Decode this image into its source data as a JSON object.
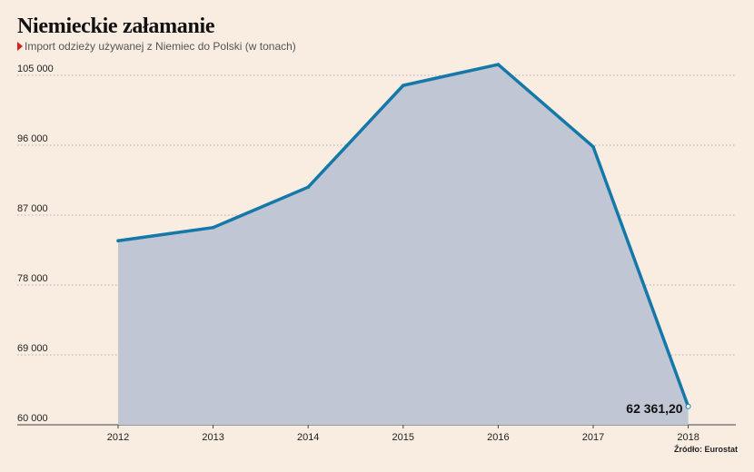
{
  "header": {
    "title": "Niemieckie załamanie",
    "subtitle": "Import odzieży używanej z Niemiec do Polski (w tonach)"
  },
  "footer": {
    "source": "Źródło: Eurostat"
  },
  "chart_data": {
    "type": "area",
    "title": "Niemieckie załamanie",
    "subtitle": "Import odzieży używanej z Niemiec do Polski (w tonach)",
    "xlabel": "",
    "ylabel": "",
    "x": [
      "2012",
      "2013",
      "2014",
      "2015",
      "2016",
      "2017",
      "2018"
    ],
    "series": [
      {
        "values": [
          83700,
          85400,
          90600,
          103700,
          106400,
          95800,
          62361.2
        ]
      }
    ],
    "ylim": [
      60000,
      105000
    ],
    "yticks": [
      60000,
      69000,
      78000,
      87000,
      96000,
      105000
    ],
    "ytick_labels": [
      "60 000",
      "69 000",
      "78 000",
      "87 000",
      "96 000",
      "105 000"
    ],
    "data_labels": [
      {
        "index": 6,
        "text": "62 361,20"
      }
    ],
    "grid": "horizontal-dotted",
    "colors": {
      "line": "#1478a8",
      "fill": "#c1c6d4",
      "background": "#f9ede1",
      "marker": "#d62222"
    }
  }
}
